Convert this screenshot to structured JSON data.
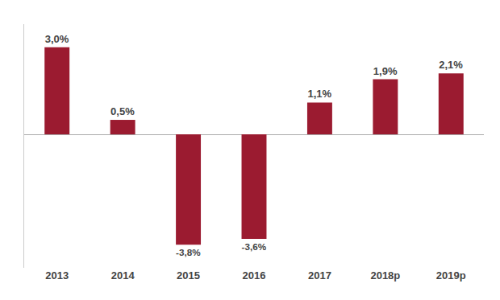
{
  "chart_data": {
    "type": "bar",
    "categories": [
      "2013",
      "2014",
      "2015",
      "2016",
      "2017",
      "2018p",
      "2019p"
    ],
    "values": [
      3.0,
      0.5,
      -3.8,
      -3.6,
      1.1,
      1.9,
      2.1
    ],
    "value_labels": [
      "3,0%",
      "0,5%",
      "-3,8%",
      "-3,6%",
      "1,1%",
      "1,9%",
      "2,1%"
    ],
    "color": "#9B1B30",
    "ylim": [
      -4.6,
      3.8
    ],
    "data_labels": true,
    "tick_labels": "x",
    "grid": false
  }
}
